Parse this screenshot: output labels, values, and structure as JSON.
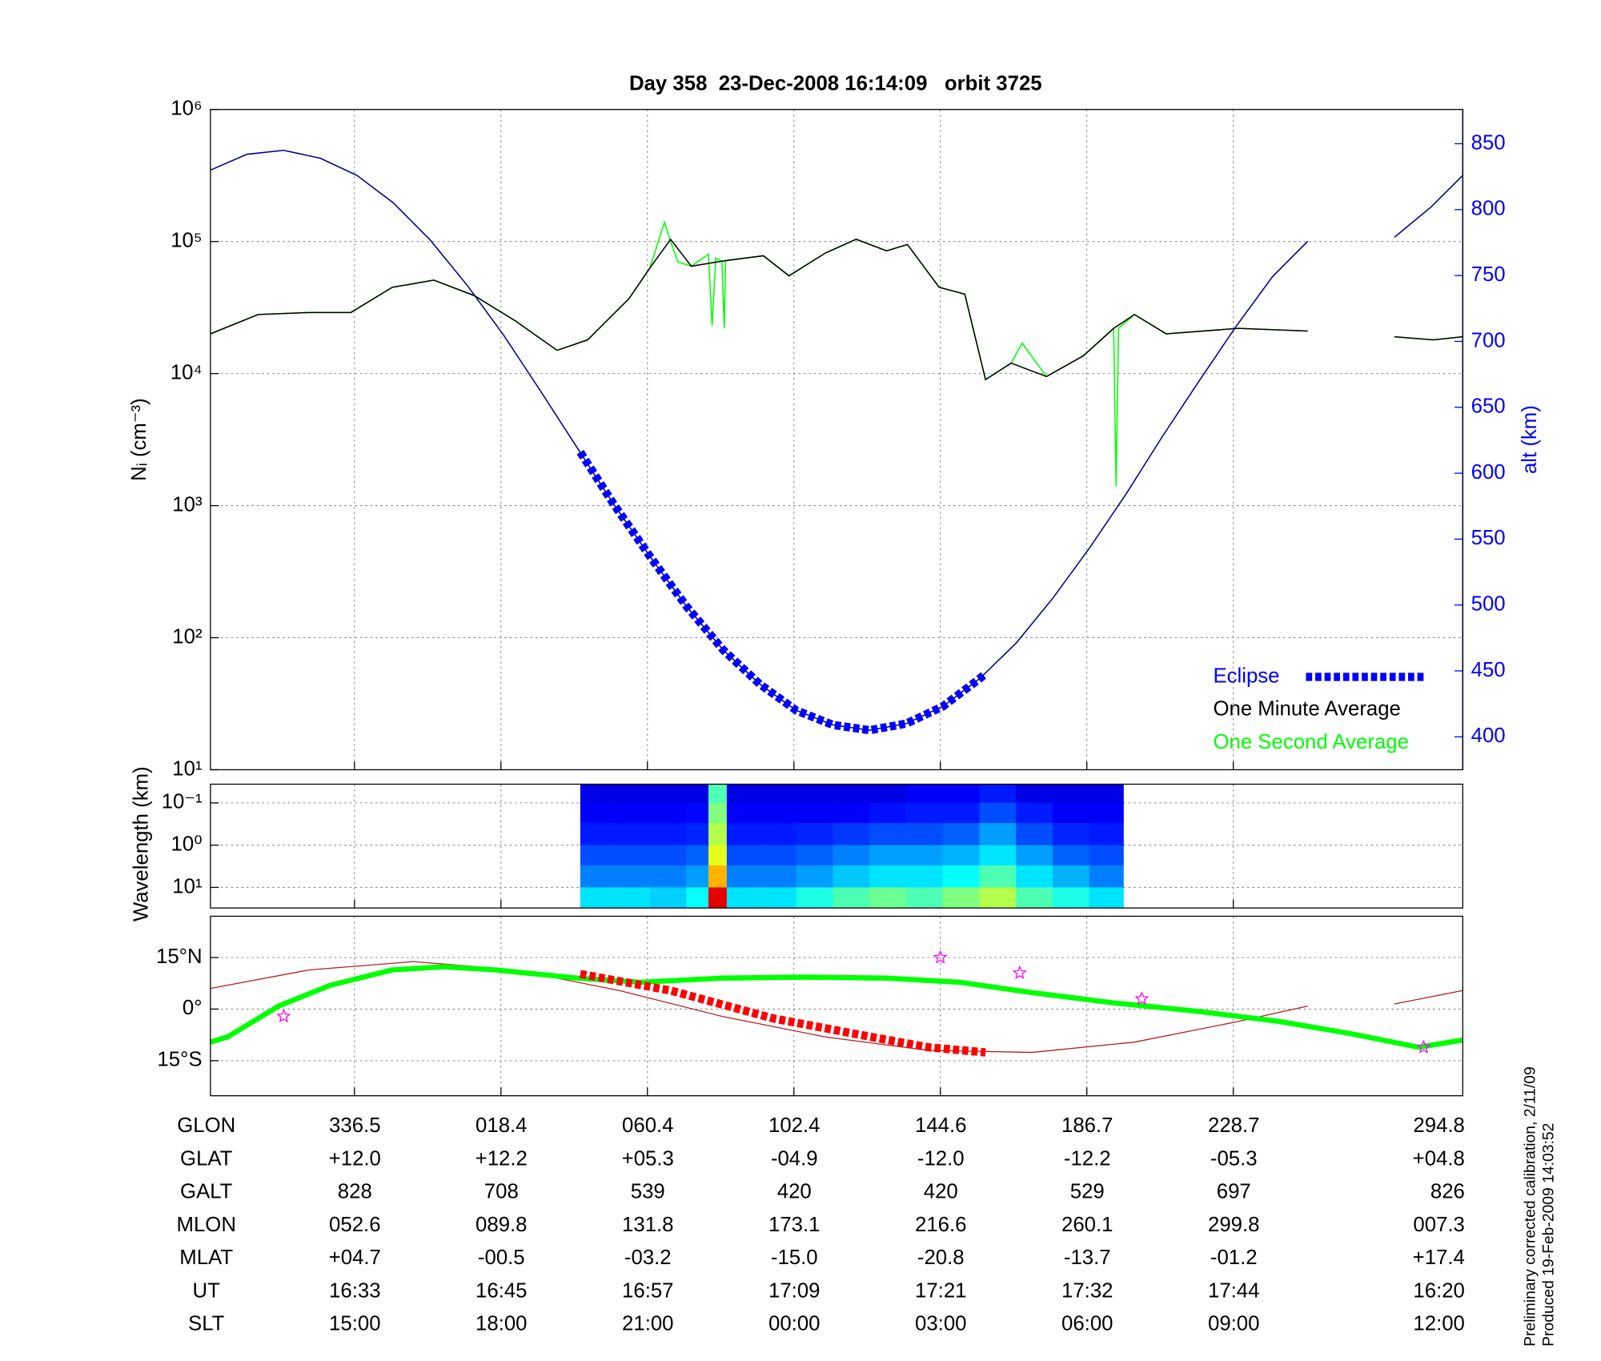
{
  "chart_data": [
    {
      "type": "line",
      "title": "Day 358  23-Dec-2008 16:14:09   orbit 3725",
      "ylabel": "Nᵢ (cm⁻³)",
      "y2label": "alt (km)",
      "ylog": true,
      "xlim": [
        0,
        102.6
      ],
      "xticks": [
        11.8,
        23.8,
        35.8,
        47.8,
        59.8,
        71.8,
        83.8
      ],
      "ylim": [
        10,
        1000000
      ],
      "yticks": [
        {
          "value": 10,
          "label": "10¹"
        },
        {
          "value": 100,
          "label": "10²"
        },
        {
          "value": 1000,
          "label": "10³"
        },
        {
          "value": 10000,
          "label": "10⁴"
        },
        {
          "value": 100000,
          "label": "10⁵"
        },
        {
          "value": 1000000,
          "label": "10⁶"
        }
      ],
      "y2lim": [
        375,
        876
      ],
      "y2ticks": [
        400,
        450,
        500,
        550,
        600,
        650,
        700,
        750,
        800,
        850
      ],
      "y2color": "#0000ff",
      "grid": true,
      "legend": "lower right",
      "series": [
        {
          "color": "#00008b",
          "axis": "y2",
          "x": [
            0,
            3,
            6,
            9,
            12,
            15,
            18,
            21,
            24,
            27,
            30,
            33,
            36,
            39,
            42,
            45,
            48,
            51,
            54,
            57,
            60,
            63,
            66,
            69,
            72,
            75,
            78,
            81,
            84,
            87,
            89.9,
            93.5,
            97,
            100,
            102.6
          ],
          "values": [
            830,
            842,
            845,
            839,
            826,
            805,
            777,
            743,
            705,
            663,
            620,
            577,
            537,
            499,
            466,
            440,
            420,
            409,
            405,
            410,
            423,
            444,
            471,
            505,
            543,
            584,
            628,
            670,
            711,
            749,
            776,
            null,
            779,
            802,
            826
          ]
        },
        {
          "name": "One Second Average",
          "color": "#00ff00",
          "x": [
            0,
            3.9,
            8.1,
            11.5,
            14.9,
            18.3,
            21.6,
            25.0,
            28.4,
            30.9,
            34.3,
            36.0,
            37.2,
            37.7,
            38.3,
            39.4,
            40.8,
            41.1,
            41.4,
            41.9,
            42.1,
            42.2,
            45.3,
            47.4,
            50.4,
            52.9,
            55.4,
            57.1,
            59.7,
            61.8,
            63.5,
            65.6,
            66.5,
            68.5,
            71.5,
            74.0,
            74.2,
            74.4,
            75.7,
            78.3,
            84.2,
            89.9,
            93.5,
            97.0,
            100.2,
            102.6
          ],
          "values": [
            20000,
            28000,
            29000,
            29000,
            45000,
            51000,
            39000,
            25000,
            15000,
            18000,
            37000,
            63000,
            140000,
            100000,
            70000,
            65000,
            80000,
            23000,
            75000,
            71000,
            22000,
            72000,
            78000,
            55000,
            82000,
            104000,
            85000,
            95000,
            45000,
            40000,
            9000,
            12000,
            17000,
            9500,
            13600,
            22000,
            1400,
            22000,
            28000,
            20000,
            22000,
            21000,
            null,
            19000,
            18000,
            19000
          ]
        },
        {
          "name": "One Minute Average",
          "color": "#000000",
          "x": [
            0,
            3.9,
            8.1,
            11.5,
            14.9,
            18.3,
            21.6,
            25.0,
            28.4,
            30.9,
            34.3,
            36.0,
            37.7,
            39.4,
            41.9,
            45.3,
            47.4,
            50.4,
            52.9,
            55.4,
            57.1,
            59.7,
            61.8,
            63.5,
            65.6,
            68.5,
            71.5,
            74.0,
            75.7,
            78.3,
            84.2,
            89.9,
            93.5,
            97.0,
            100.2,
            102.6
          ],
          "values": [
            20000,
            28000,
            29000,
            29000,
            45000,
            51000,
            39000,
            25000,
            15000,
            18000,
            37000,
            63000,
            104000,
            65000,
            71000,
            78000,
            55000,
            82000,
            104000,
            85000,
            95000,
            45000,
            40000,
            9000,
            12000,
            9500,
            13600,
            22000,
            28000,
            20000,
            22000,
            21000,
            null,
            19000,
            18000,
            19000
          ]
        },
        {
          "name": "Eclipse",
          "color": "#0000ff",
          "axis": "y2",
          "linestyle": "dashed",
          "x": [
            30.3,
            33,
            36,
            39,
            42,
            45,
            48,
            51,
            54,
            57,
            60,
            63,
            63.5
          ],
          "values": [
            616,
            577,
            537,
            499,
            466,
            440,
            420,
            409,
            405,
            410,
            423,
            444,
            448
          ]
        }
      ]
    },
    {
      "type": "heatmap",
      "ylabel": "Wavelength (km)",
      "ylog": true,
      "xlim": [
        0,
        102.6
      ],
      "xticks": [
        11.8,
        23.8,
        35.8,
        47.8,
        59.8,
        71.8,
        83.8
      ],
      "ylim": [
        0.036,
        30.7
      ],
      "yticks": [
        {
          "value": 0.1,
          "label": "10⁻¹"
        },
        {
          "value": 1,
          "label": "10⁰"
        },
        {
          "value": 10,
          "label": "10¹"
        }
      ],
      "grid": true,
      "x_edges": [
        30.3,
        33,
        36,
        39,
        40.8,
        42.3,
        45,
        48,
        51,
        54,
        57,
        60,
        63,
        66,
        69,
        72,
        74.8
      ],
      "y_edges": [
        0.036,
        0.1,
        0.3,
        1,
        3,
        10,
        30.7
      ],
      "z": [
        [
          0.1,
          0.1,
          0.1,
          0.1,
          0.45,
          0.1,
          0.1,
          0.1,
          0.1,
          0.1,
          0.12,
          0.12,
          0.15,
          0.1,
          0.1,
          0.1
        ],
        [
          0.12,
          0.12,
          0.12,
          0.13,
          0.5,
          0.12,
          0.12,
          0.12,
          0.12,
          0.14,
          0.15,
          0.15,
          0.2,
          0.15,
          0.12,
          0.12
        ],
        [
          0.15,
          0.15,
          0.15,
          0.16,
          0.55,
          0.15,
          0.15,
          0.16,
          0.18,
          0.2,
          0.2,
          0.22,
          0.28,
          0.2,
          0.16,
          0.15
        ],
        [
          0.2,
          0.2,
          0.2,
          0.22,
          0.6,
          0.2,
          0.2,
          0.22,
          0.25,
          0.28,
          0.28,
          0.3,
          0.35,
          0.28,
          0.22,
          0.2
        ],
        [
          0.25,
          0.25,
          0.25,
          0.28,
          0.7,
          0.25,
          0.25,
          0.28,
          0.32,
          0.35,
          0.35,
          0.38,
          0.45,
          0.35,
          0.3,
          0.25
        ],
        [
          0.35,
          0.35,
          0.33,
          0.38,
          0.9,
          0.35,
          0.35,
          0.4,
          0.45,
          0.48,
          0.45,
          0.5,
          0.55,
          0.45,
          0.4,
          0.35
        ]
      ]
    },
    {
      "type": "map",
      "xlim": [
        0,
        102.6
      ],
      "xticks": [
        11.8,
        23.8,
        35.8,
        47.8,
        59.8,
        71.8,
        83.8
      ],
      "ylim": [
        -25.2,
        27
      ],
      "yticks": [
        {
          "value": -15,
          "label": "15°S"
        },
        {
          "value": 0,
          "label": "0°"
        },
        {
          "value": 15,
          "label": "15°N"
        }
      ],
      "series": [
        {
          "color": "#b22222",
          "x": [
            0,
            8.1,
            16.6,
            25.0,
            33.5,
            41.9,
            50.4,
            58.8,
            67.3,
            75.7,
            84.2,
            89.9,
            93.5,
            97.0,
            102.6
          ],
          "values": [
            6,
            11.4,
            13.8,
            11.4,
            5.4,
            -2.1,
            -8.1,
            -12,
            -12.6,
            -9.6,
            -3.6,
            0.9,
            null,
            1.5,
            5.4
          ]
        },
        {
          "color": "#00ff00",
          "linestyle": "bold",
          "x": [
            0,
            1.4,
            5.6,
            9.8,
            14.9,
            19.1,
            23.3,
            30.1,
            35.2,
            41.9,
            48.7,
            55.4,
            61.4,
            67.3,
            74.0,
            80.8,
            87.6,
            93.5,
            99.0,
            102.6
          ],
          "values": [
            -9.6,
            -8.1,
            0.9,
            6.9,
            11.4,
            12.3,
            11.4,
            9.0,
            7.8,
            9.0,
            9.3,
            9.0,
            7.8,
            4.8,
            1.8,
            -0.6,
            -3.6,
            -7.2,
            -11.1,
            -9.0
          ]
        },
        {
          "color": "#ff0000",
          "linestyle": "dashed",
          "x": [
            30.3,
            37.7,
            46.1,
            54.6,
            58.8,
            63.5
          ],
          "values": [
            10.2,
            5.4,
            -2.7,
            -8.4,
            -11.1,
            -12.6
          ]
        }
      ],
      "points": {
        "color": "#ff00ff",
        "x": [
          6.0,
          59.8,
          66.3,
          76.3,
          99.4
        ],
        "values": [
          -2.1,
          15,
          10.5,
          3,
          -11.1
        ]
      }
    }
  ],
  "table": {
    "rows": [
      {
        "label": "GLON",
        "values": [
          "336.5",
          "018.4",
          "060.4",
          "102.4",
          "144.6",
          "186.7",
          "228.7",
          "294.8"
        ]
      },
      {
        "label": "GLAT",
        "values": [
          "+12.0",
          "+12.2",
          "+05.3",
          "-04.9",
          "-12.0",
          "-12.2",
          "-05.3",
          "+04.8"
        ]
      },
      {
        "label": "GALT",
        "values": [
          "828",
          "708",
          "539",
          "420",
          "420",
          "529",
          "697",
          "826"
        ]
      },
      {
        "label": "MLON",
        "values": [
          "052.6",
          "089.8",
          "131.8",
          "173.1",
          "216.6",
          "260.1",
          "299.8",
          "007.3"
        ]
      },
      {
        "label": "MLAT",
        "values": [
          "+04.7",
          "-00.5",
          "-03.2",
          "-15.0",
          "-20.8",
          "-13.7",
          "-01.2",
          "+17.4"
        ]
      },
      {
        "label": "UT",
        "values": [
          "16:33",
          "16:45",
          "16:57",
          "17:09",
          "17:21",
          "17:32",
          "17:44",
          "16:20"
        ]
      },
      {
        "label": "SLT",
        "values": [
          "15:00",
          "18:00",
          "21:00",
          "00:00",
          "03:00",
          "06:00",
          "09:00",
          "12:00"
        ]
      }
    ]
  },
  "footnotes": [
    "Preliminary corrected calibration, 2/11/09",
    "Produced 19-Feb-2009 14:03:52"
  ]
}
